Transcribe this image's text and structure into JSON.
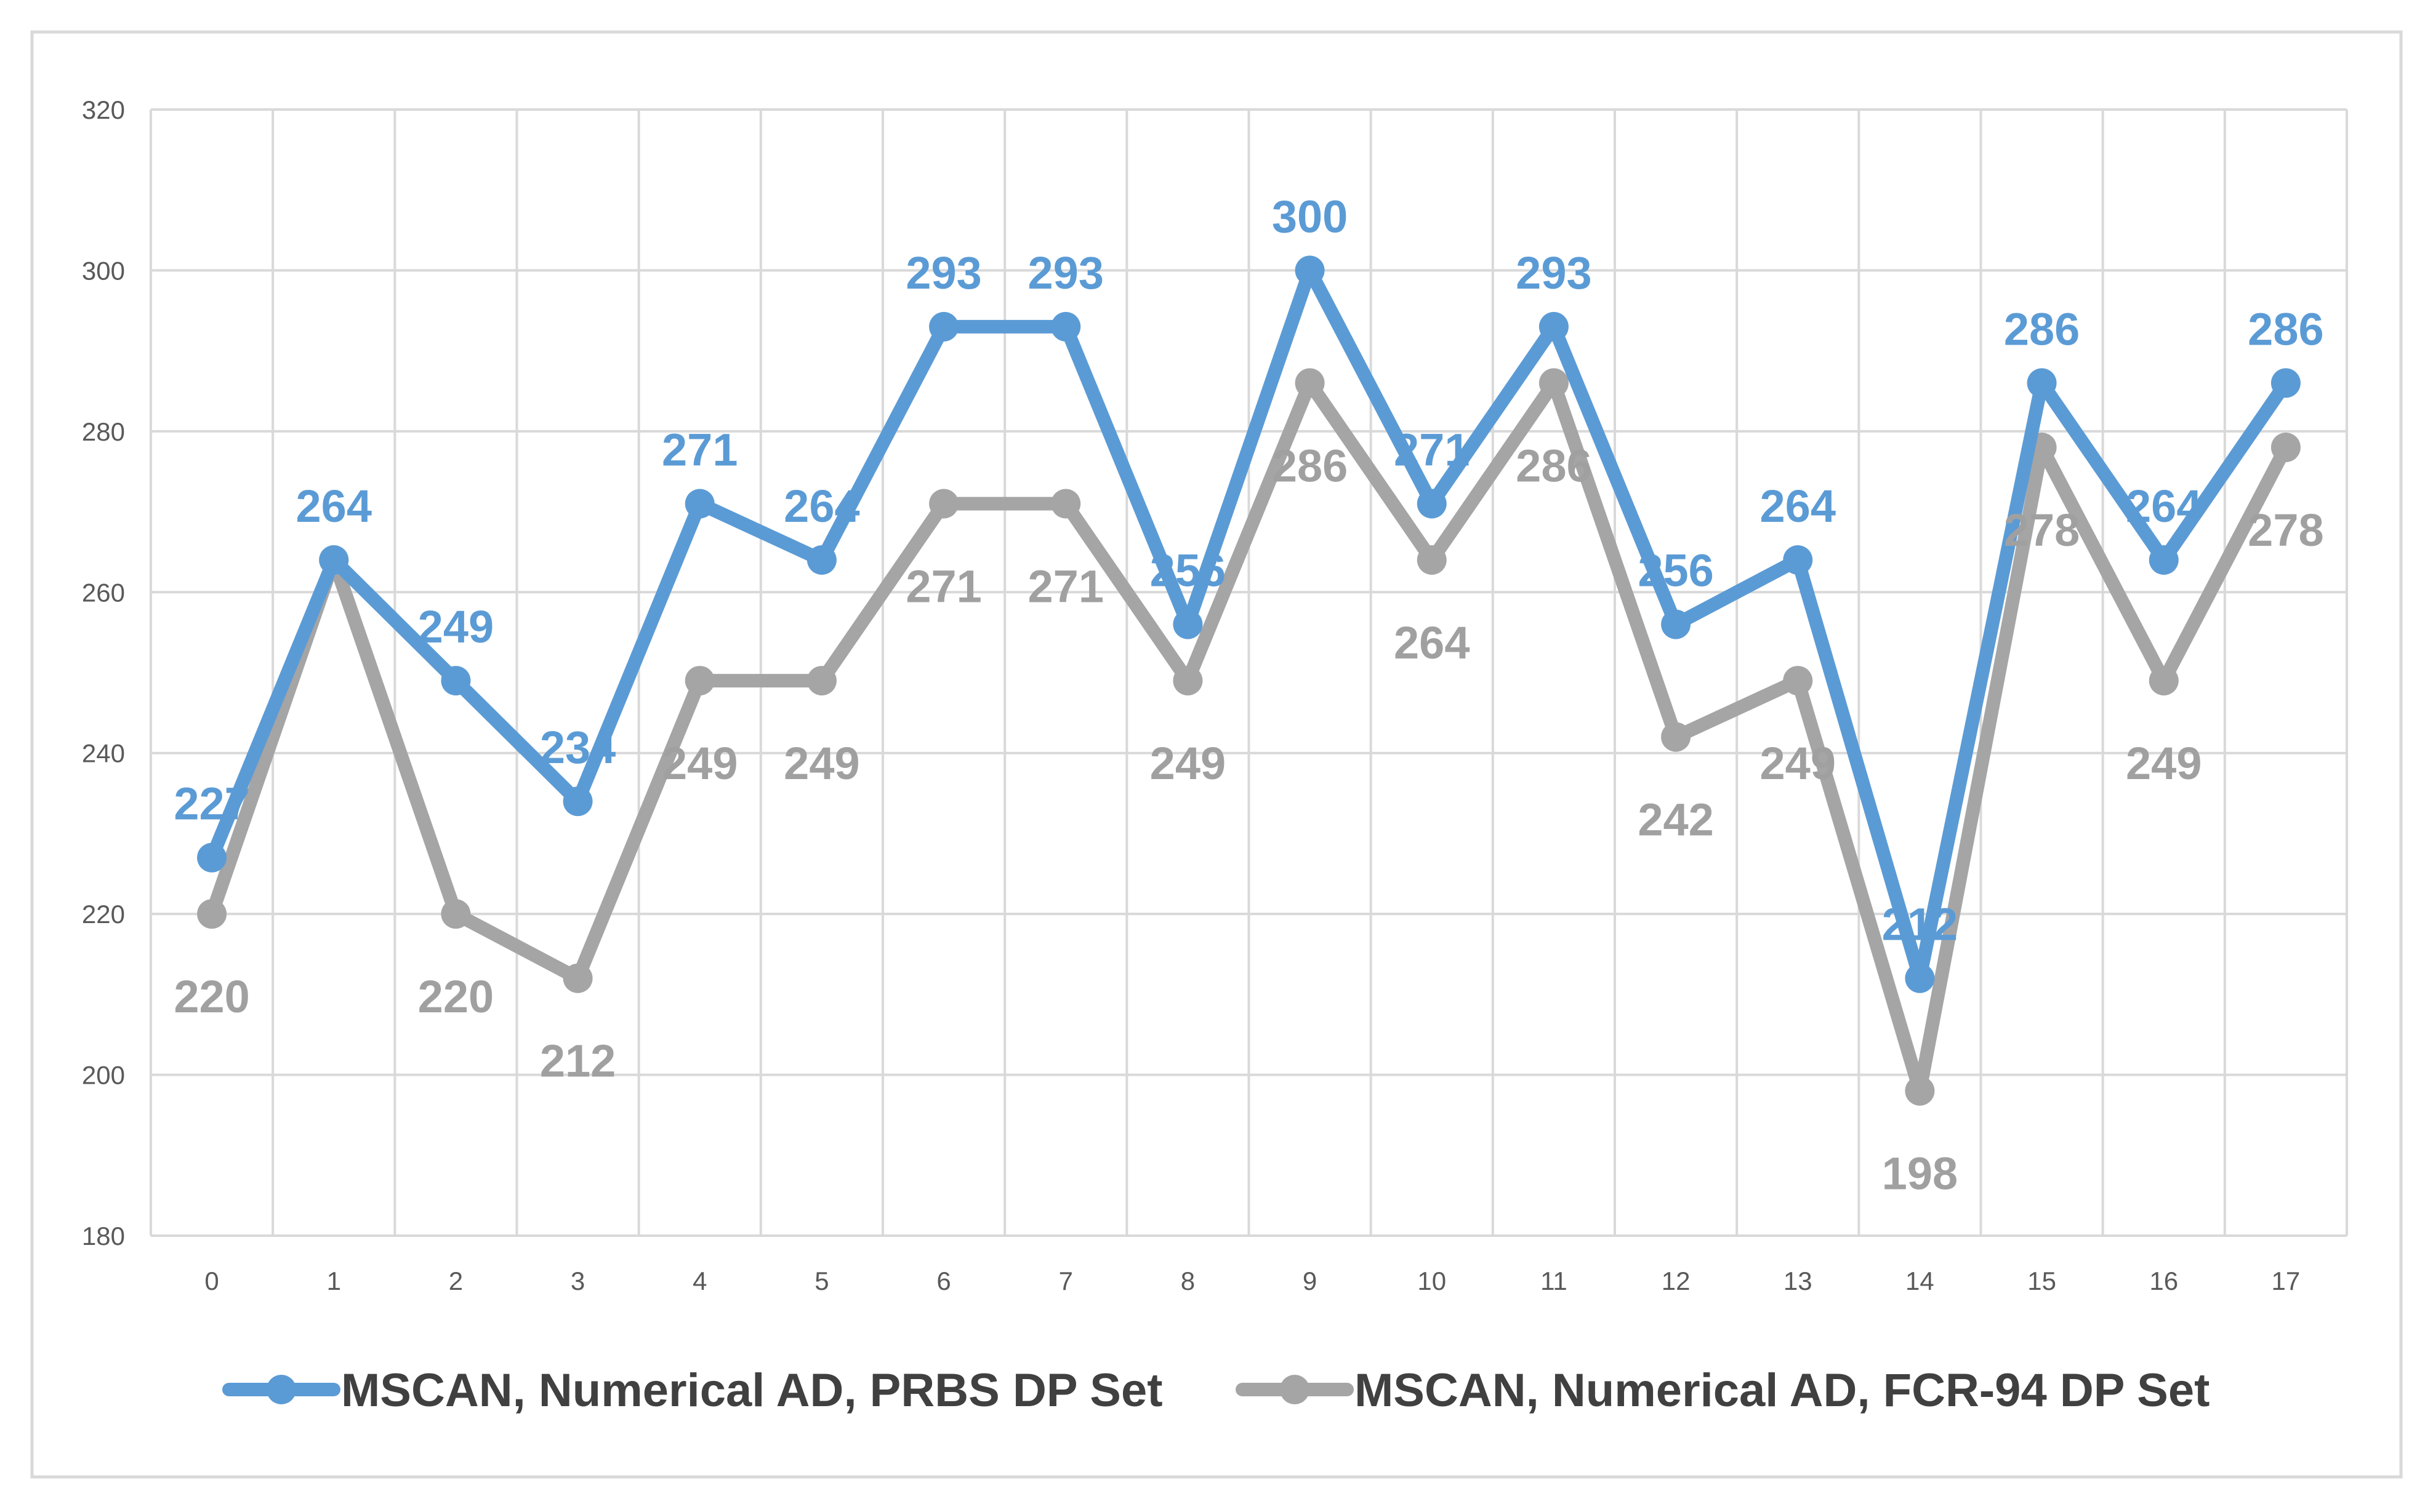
{
  "chart_data": {
    "type": "line",
    "title": "",
    "xlabel": "",
    "ylabel": "",
    "x": [
      "0",
      "1",
      "2",
      "3",
      "4",
      "5",
      "6",
      "7",
      "8",
      "9",
      "10",
      "11",
      "12",
      "13",
      "14",
      "15",
      "16",
      "17"
    ],
    "ylim": [
      180,
      320
    ],
    "yticks": [
      "180",
      "200",
      "220",
      "240",
      "260",
      "280",
      "300",
      "320"
    ],
    "grid": true,
    "legend_position": "bottom",
    "series": [
      {
        "name": "MSCAN, Numerical AD, PRBS DP Set",
        "color": "#5B9BD5",
        "label_color": "#5B9BD5",
        "values": [
          227,
          264,
          249,
          234,
          271,
          264,
          293,
          293,
          256,
          300,
          271,
          293,
          256,
          264,
          212,
          286,
          264,
          286
        ],
        "labels": [
          "227",
          "264",
          "249",
          "234",
          "271",
          "264",
          "293",
          "293",
          "256",
          "300",
          "271",
          "293",
          "256",
          "264",
          "212",
          "286",
          "264",
          "286"
        ]
      },
      {
        "name": "MSCAN, Numerical AD, FCR-94 DP Set",
        "color": "#A5A5A5",
        "label_color": "#A0A0A0",
        "values": [
          220,
          264,
          220,
          212,
          249,
          249,
          271,
          271,
          249,
          286,
          264,
          286,
          242,
          249,
          198,
          278,
          249,
          278
        ],
        "labels": [
          "220",
          "",
          "220",
          "212",
          "249",
          "249",
          "271",
          "271",
          "249",
          "286",
          "264",
          "286",
          "242",
          "249",
          "198",
          "278",
          "249",
          "278"
        ]
      }
    ]
  }
}
